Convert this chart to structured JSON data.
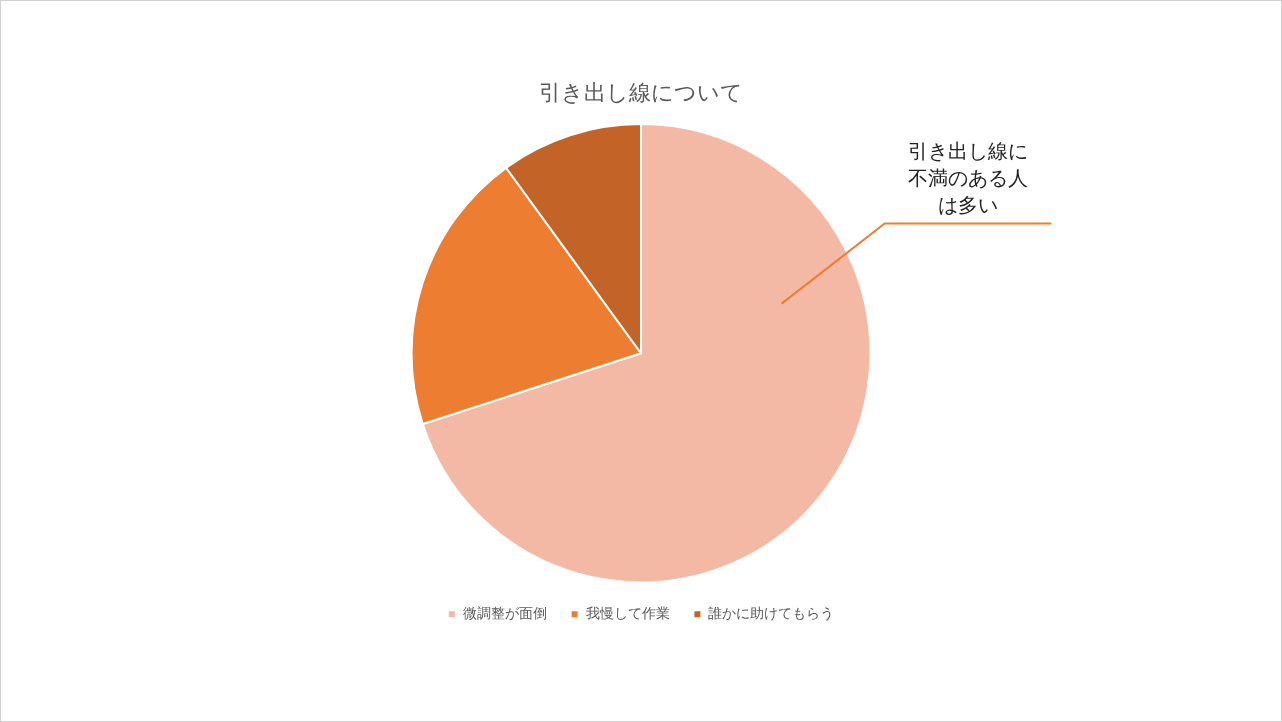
{
  "chart_data": {
    "type": "pie",
    "title": "引き出し線について",
    "categories": [
      "微調整が面倒",
      "我慢して作業",
      "誰かに助けてもらう"
    ],
    "values": [
      70,
      20,
      10
    ],
    "colors": [
      "#f4b9a5",
      "#ed7d31",
      "#c46327"
    ],
    "legend": "bottom",
    "annotations": [
      {
        "text": "引き出し線に不満のある人は多い",
        "x": "微調整が面倒"
      }
    ]
  }
}
